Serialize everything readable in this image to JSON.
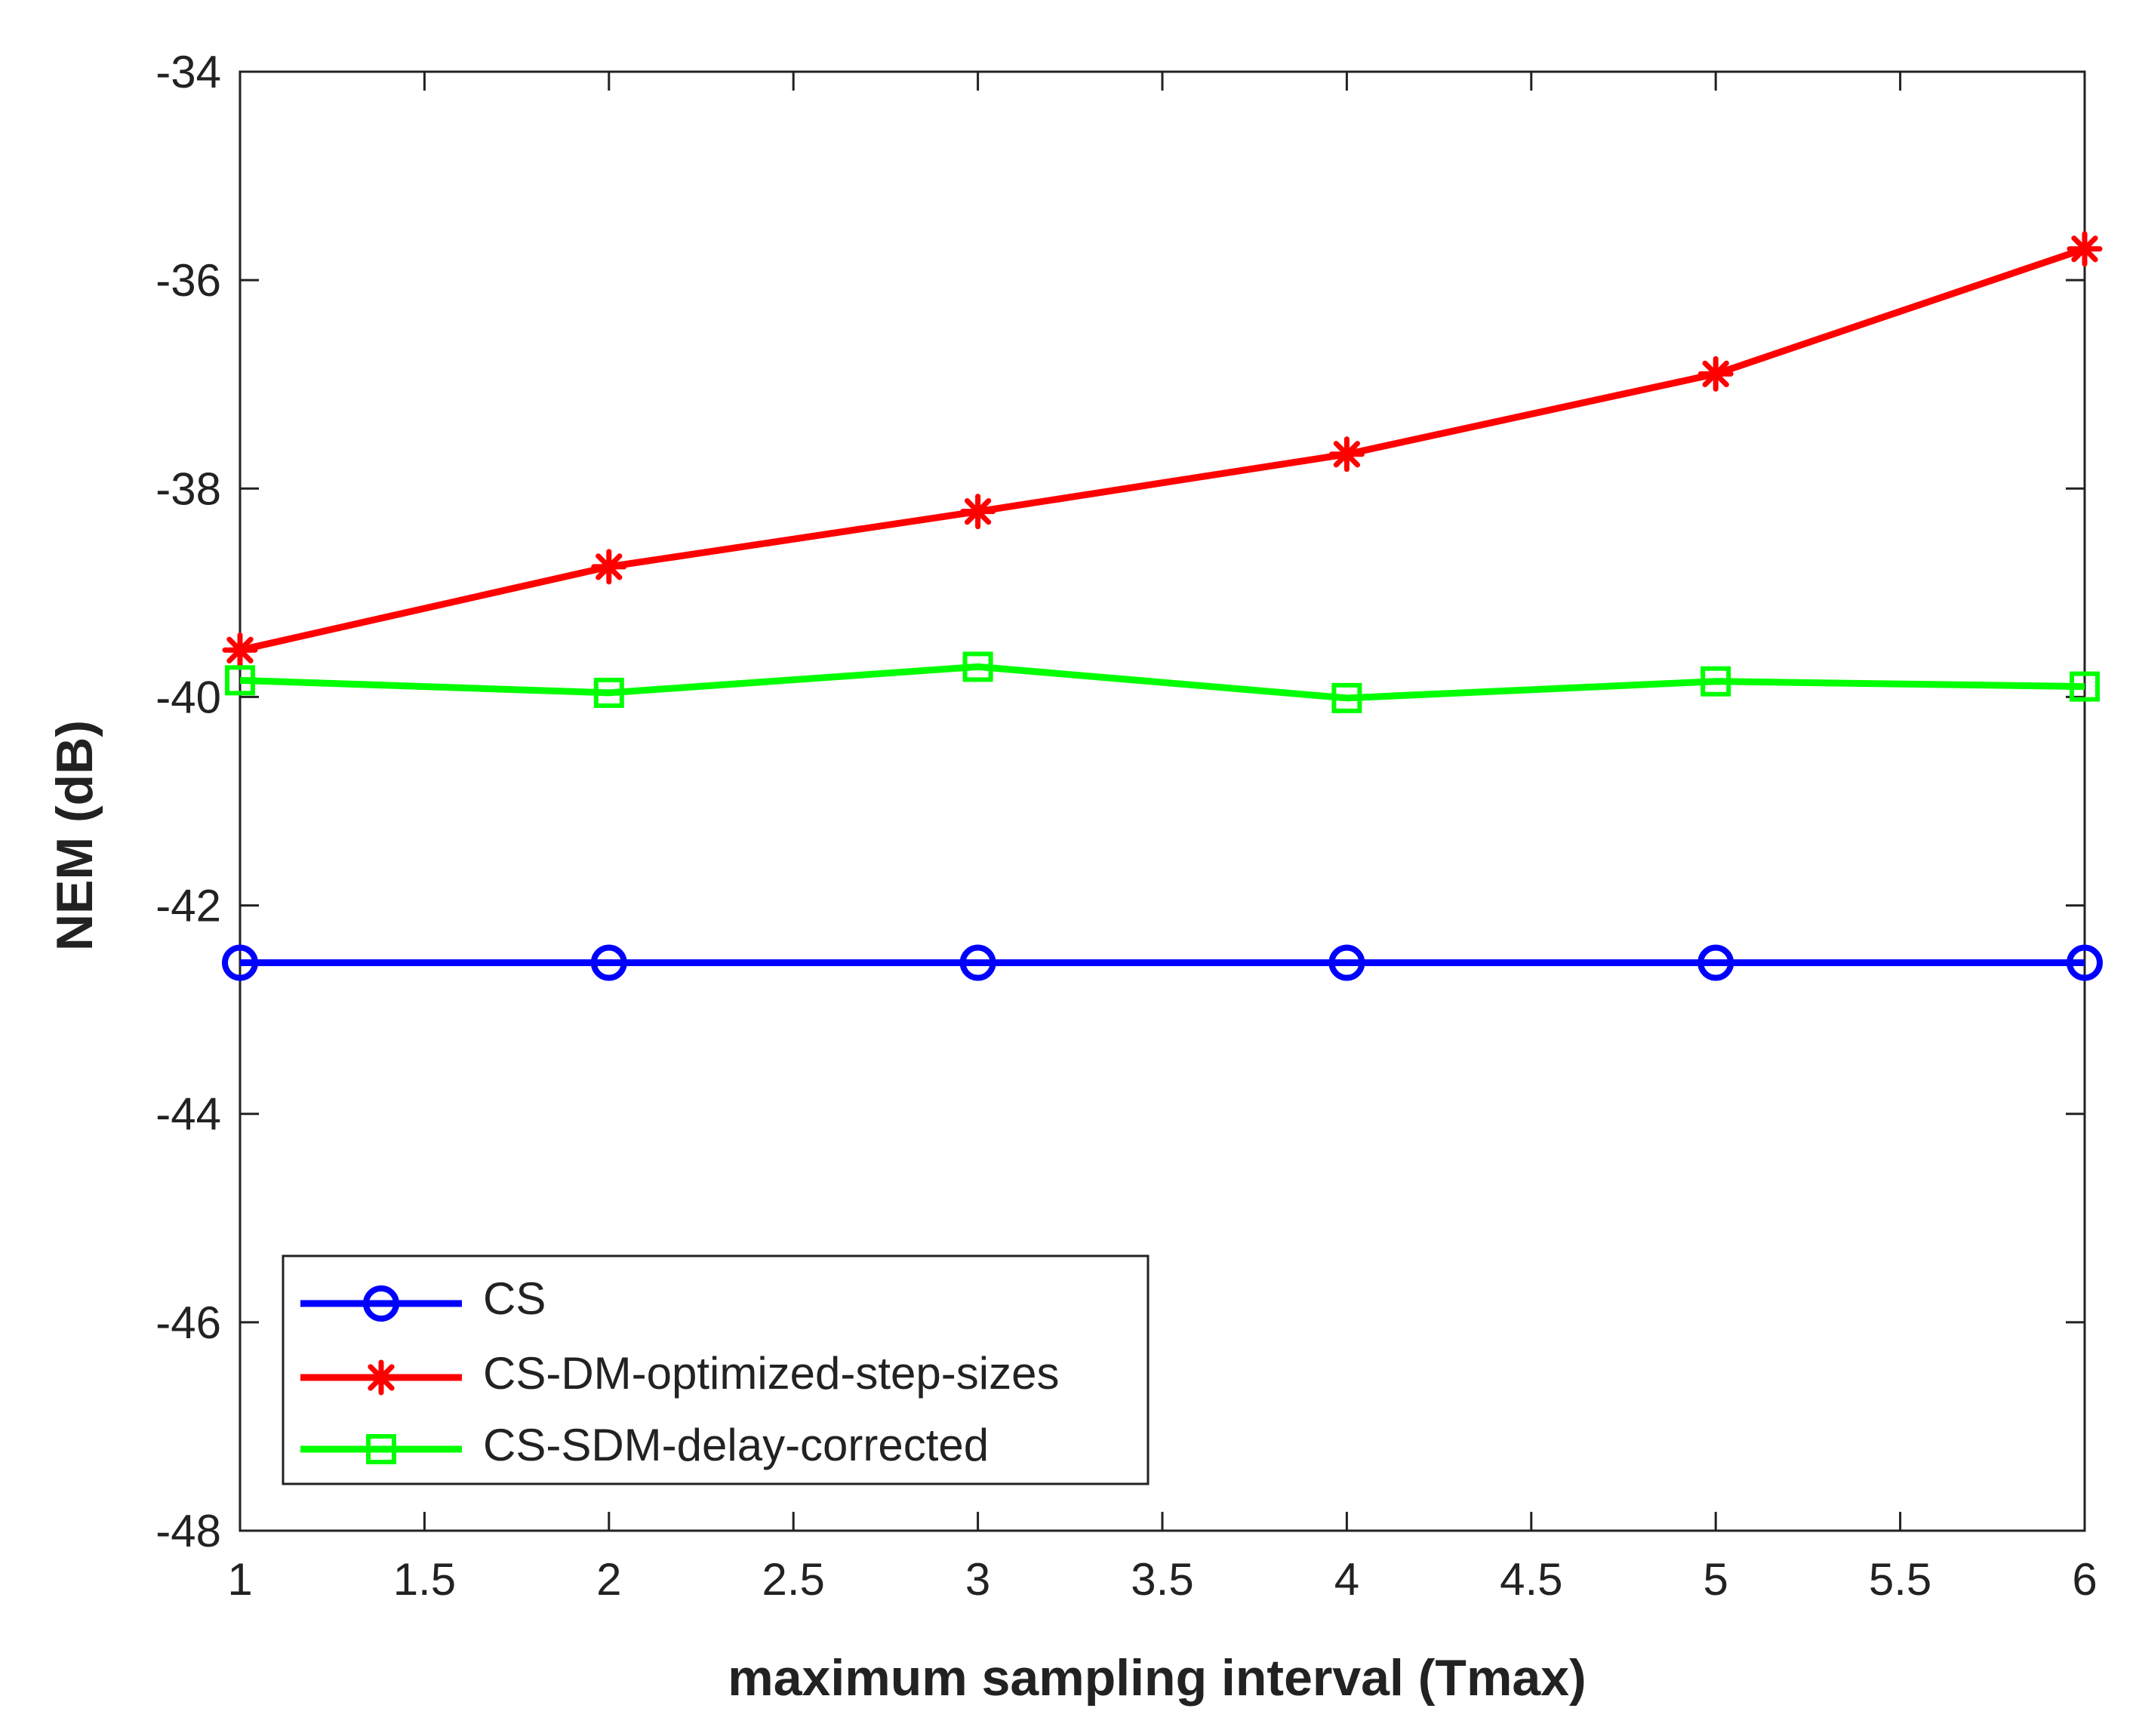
{
  "chart_data": {
    "type": "line",
    "title": "",
    "xlabel": "maximum sampling interval (Tmax)",
    "ylabel": "NEM (dB)",
    "xlim": [
      1,
      6
    ],
    "ylim": [
      -48,
      -34
    ],
    "xticks": [
      1,
      1.5,
      2,
      2.5,
      3,
      3.5,
      4,
      4.5,
      5,
      5.5,
      6
    ],
    "xtick_labels": [
      "1",
      "1.5",
      "2",
      "2.5",
      "3",
      "3.5",
      "4",
      "4.5",
      "5",
      "5.5",
      "6"
    ],
    "yticks": [
      -48,
      -46,
      -44,
      -42,
      -40,
      -38,
      -36,
      -34
    ],
    "ytick_labels": [
      "-48",
      "-46",
      "-44",
      "-42",
      "-40",
      "-38",
      "-36",
      "-34"
    ],
    "grid": false,
    "legend_position": "bottom-left",
    "x": [
      1,
      2,
      3,
      4,
      5,
      6
    ],
    "series": [
      {
        "name": "CS",
        "color": "#0000ff",
        "marker": "circle",
        "values": [
          -42.55,
          -42.55,
          -42.55,
          -42.55,
          -42.55,
          -42.55
        ]
      },
      {
        "name": "CS-DM-optimized-step-sizes",
        "color": "#ff0000",
        "marker": "asterisk",
        "values": [
          -39.55,
          -38.75,
          -38.22,
          -37.67,
          -36.9,
          -35.7
        ]
      },
      {
        "name": "CS-SDM-delay-corrected",
        "color": "#00ff00",
        "marker": "square",
        "values": [
          -39.84,
          -39.96,
          -39.71,
          -40.01,
          -39.85,
          -39.9
        ]
      }
    ]
  }
}
